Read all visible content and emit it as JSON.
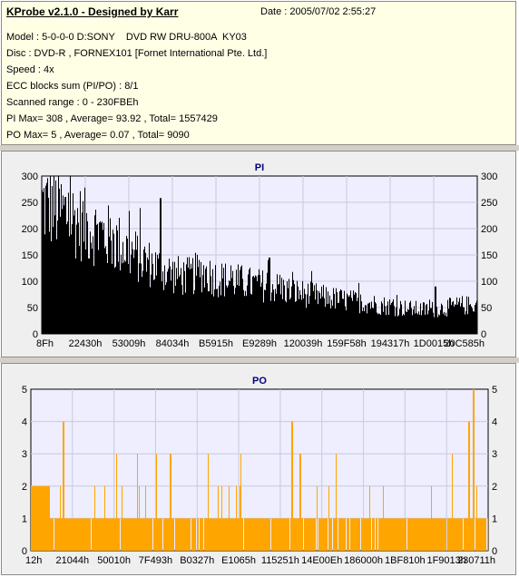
{
  "info": {
    "title": "KProbe v2.1.0 - Designed by Karr",
    "date": "Date : 2005/07/02 2:55:27",
    "lines": [
      "Model : 5-0-0-0 D:SONY    DVD RW DRU-800A  KY03",
      "Disc : DVD-R , FORNEX101 [Fornet International Pte. Ltd.]",
      "Speed : 4x",
      "ECC blocks sum (PI/PO) : 8/1",
      "Scanned range : 0 - 230FBEh",
      "PI Max= 308 , Average= 93.92 , Total= 1557429",
      "PO Max= 5 , Average= 0.07 , Total= 9090"
    ]
  },
  "colors": {
    "pi_fill": "#000000",
    "po_fill": "#ffa500",
    "plot_bg": "#eeeeff",
    "grid": "#c8c8e0",
    "title": "#00007f"
  },
  "chart_data": [
    {
      "type": "area",
      "title": "PI",
      "xlabel": "",
      "ylabel": "",
      "ylim": [
        0,
        300
      ],
      "yticks": [
        0,
        50,
        100,
        150,
        200,
        250,
        300
      ],
      "xtick_labels": [
        "8Fh",
        "22430h",
        "53009h",
        "84034h",
        "B5915h",
        "E9289h",
        "120039h",
        "159F58h",
        "194317h",
        "1D0015h",
        "20C585h"
      ],
      "grid": true,
      "series": [
        {
          "values": [
            290,
            288,
            280,
            272,
            265,
            255,
            245,
            238,
            230,
            222,
            215,
            205,
            195,
            185,
            175,
            165,
            158,
            150,
            142,
            138,
            132,
            128,
            128,
            135,
            140,
            132,
            125,
            122,
            120,
            118,
            115,
            112,
            110,
            108,
            106,
            104,
            100,
            96,
            93,
            90,
            87,
            85,
            82,
            80,
            78,
            76,
            74,
            72,
            70,
            68,
            66,
            64,
            62,
            60,
            58,
            56,
            55,
            54,
            54,
            56,
            58,
            60,
            62,
            64,
            63,
            64
          ],
          "spikes": [
            {
              "at": 0.273,
              "value": 258
            },
            {
              "at": 0.523,
              "value": 145
            },
            {
              "at": 0.905,
              "value": 90
            }
          ]
        }
      ]
    },
    {
      "type": "area",
      "title": "PO",
      "xlabel": "",
      "ylabel": "",
      "ylim": [
        0,
        5
      ],
      "yticks": [
        0,
        1,
        2,
        3,
        4,
        5
      ],
      "xtick_labels": [
        "12h",
        "21044h",
        "50010h",
        "7F493h",
        "B0327h",
        "E1065h",
        "115251h",
        "14E00Eh",
        "186000h",
        "1BF810h",
        "1F9013h",
        "230711h"
      ],
      "grid": true,
      "series": [
        {
          "values": [
            2,
            2,
            2,
            1,
            1,
            1,
            1,
            1,
            1,
            1,
            1,
            1,
            1,
            1,
            1,
            1,
            1,
            1,
            1,
            1,
            1,
            1,
            1,
            1,
            1,
            1,
            1,
            1,
            1,
            1,
            1,
            1,
            1,
            1,
            1,
            1,
            1,
            1,
            1,
            1,
            1,
            1,
            1,
            1,
            1,
            1,
            1,
            1,
            1,
            1,
            1,
            1,
            1,
            1,
            1,
            1,
            1,
            1,
            1,
            1,
            1,
            1,
            1,
            1,
            1,
            1
          ],
          "spikes": [
            {
              "at": 0.07,
              "value": 4
            },
            {
              "at": 0.305,
              "value": 3
            },
            {
              "at": 0.572,
              "value": 4
            },
            {
              "at": 0.59,
              "value": 3
            },
            {
              "at": 0.96,
              "value": 4
            },
            {
              "at": 0.97,
              "value": 5
            }
          ]
        }
      ]
    }
  ]
}
